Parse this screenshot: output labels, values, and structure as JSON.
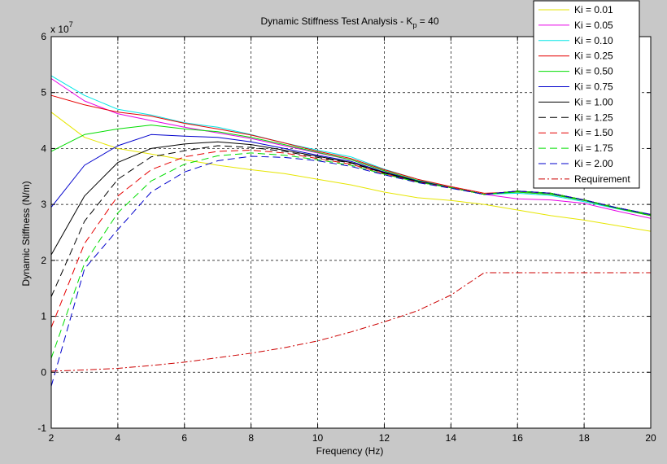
{
  "chart_data": {
    "type": "line",
    "title_main": "Dynamic Stiffness Test Analysis - K",
    "title_sub": "p",
    "title_tail": " = 40",
    "xlabel": "Frequency (Hz)",
    "ylabel": "Dynamic Stiffness (N/m)",
    "exponent_base": "x 10",
    "exponent_power": "7",
    "xlim": [
      2,
      20
    ],
    "ylim": [
      -1,
      6
    ],
    "xticks": [
      "2",
      "4",
      "6",
      "8",
      "10",
      "12",
      "14",
      "16",
      "18",
      "20"
    ],
    "yticks": [
      "-1",
      "0",
      "1",
      "2",
      "3",
      "4",
      "5",
      "6"
    ],
    "grid": true,
    "legend_position": "top-right",
    "x": [
      2,
      3,
      4,
      5,
      6,
      7,
      8,
      9,
      10,
      11,
      12,
      13,
      14,
      15,
      16,
      17,
      18,
      19,
      20
    ],
    "series": [
      {
        "name": "Ki = 0.01",
        "color": "#e6e600",
        "dash": "solid",
        "values": [
          4.65,
          4.2,
          4.0,
          3.9,
          3.8,
          3.7,
          3.62,
          3.55,
          3.45,
          3.35,
          3.22,
          3.12,
          3.07,
          3.0,
          2.9,
          2.8,
          2.72,
          2.62,
          2.52
        ]
      },
      {
        "name": "Ki = 0.05",
        "color": "#e600e6",
        "dash": "solid",
        "values": [
          5.25,
          4.85,
          4.62,
          4.5,
          4.38,
          4.28,
          4.18,
          4.05,
          3.92,
          3.8,
          3.6,
          3.42,
          3.3,
          3.18,
          3.1,
          3.08,
          3.02,
          2.88,
          2.75
        ]
      },
      {
        "name": "Ki = 0.10",
        "color": "#00e6e6",
        "dash": "solid",
        "values": [
          5.3,
          4.95,
          4.7,
          4.6,
          4.46,
          4.38,
          4.25,
          4.1,
          3.97,
          3.85,
          3.63,
          3.45,
          3.3,
          3.18,
          3.2,
          3.16,
          3.05,
          2.92,
          2.8
        ]
      },
      {
        "name": "Ki = 0.25",
        "color": "#e60000",
        "dash": "solid",
        "values": [
          4.95,
          4.78,
          4.65,
          4.58,
          4.45,
          4.35,
          4.24,
          4.1,
          3.95,
          3.82,
          3.62,
          3.45,
          3.32,
          3.2,
          3.22,
          3.18,
          3.07,
          2.93,
          2.8
        ]
      },
      {
        "name": "Ki = 0.50",
        "color": "#00dd00",
        "dash": "solid",
        "values": [
          3.95,
          4.25,
          4.35,
          4.42,
          4.35,
          4.3,
          4.2,
          4.07,
          3.93,
          3.8,
          3.6,
          3.43,
          3.3,
          3.18,
          3.22,
          3.18,
          3.07,
          2.93,
          2.8
        ]
      },
      {
        "name": "Ki = 0.75",
        "color": "#0000cc",
        "dash": "solid",
        "values": [
          2.95,
          3.7,
          4.05,
          4.25,
          4.22,
          4.2,
          4.12,
          4.0,
          3.88,
          3.77,
          3.58,
          3.42,
          3.3,
          3.18,
          3.24,
          3.2,
          3.08,
          2.94,
          2.82
        ]
      },
      {
        "name": "Ki = 1.00",
        "color": "#000000",
        "dash": "solid",
        "values": [
          2.1,
          3.15,
          3.75,
          4.0,
          4.08,
          4.12,
          4.07,
          3.97,
          3.86,
          3.75,
          3.57,
          3.41,
          3.3,
          3.18,
          3.24,
          3.2,
          3.08,
          2.94,
          2.82
        ]
      },
      {
        "name": "Ki = 1.25",
        "color": "#000000",
        "dash": "dashed",
        "values": [
          1.35,
          2.7,
          3.45,
          3.85,
          3.96,
          4.05,
          4.02,
          3.95,
          3.84,
          3.74,
          3.56,
          3.41,
          3.3,
          3.18,
          3.24,
          3.2,
          3.08,
          2.94,
          2.82
        ]
      },
      {
        "name": "Ki = 1.50",
        "color": "#e60000",
        "dash": "dashed",
        "values": [
          0.8,
          2.3,
          3.15,
          3.62,
          3.85,
          3.95,
          3.97,
          3.92,
          3.82,
          3.72,
          3.55,
          3.4,
          3.3,
          3.18,
          3.24,
          3.2,
          3.08,
          2.94,
          2.82
        ]
      },
      {
        "name": "Ki = 1.75",
        "color": "#00dd00",
        "dash": "dashed",
        "values": [
          0.25,
          1.95,
          2.85,
          3.42,
          3.72,
          3.87,
          3.92,
          3.88,
          3.8,
          3.7,
          3.54,
          3.4,
          3.3,
          3.18,
          3.24,
          3.2,
          3.08,
          2.94,
          2.82
        ]
      },
      {
        "name": "Ki = 2.00",
        "color": "#0000cc",
        "dash": "dashed",
        "values": [
          -0.25,
          1.85,
          2.55,
          3.22,
          3.58,
          3.78,
          3.86,
          3.84,
          3.78,
          3.68,
          3.53,
          3.39,
          3.29,
          3.18,
          3.24,
          3.2,
          3.08,
          2.94,
          2.82
        ]
      },
      {
        "name": "Requirement",
        "color": "#cc0000",
        "dash": "dashdot",
        "values": [
          0.02,
          0.04,
          0.07,
          0.12,
          0.18,
          0.26,
          0.34,
          0.44,
          0.56,
          0.72,
          0.9,
          1.1,
          1.38,
          1.78,
          1.78,
          1.78,
          1.78,
          1.78,
          1.78
        ]
      }
    ]
  }
}
